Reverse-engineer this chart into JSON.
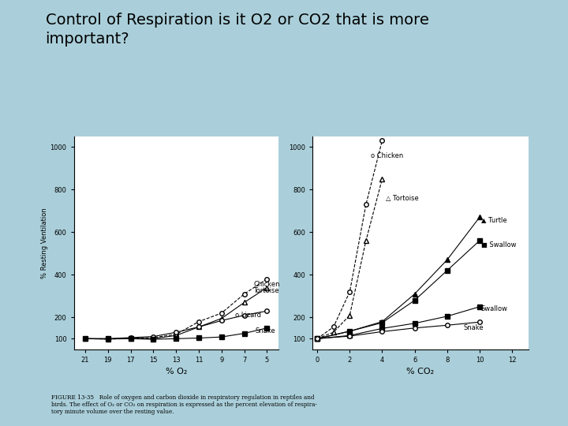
{
  "title": "Control of Respiration is it O2 or CO2 that is more\nimportant?",
  "title_fontsize": 14,
  "bg_color": "#aacfda",
  "panel_bg": "#ffffff",
  "ylabel": "% Resting Ventilation",
  "xlabel_left": "% O₂",
  "xlabel_right": "% CO₂",
  "o2_x_ticks": [
    21,
    19,
    17,
    15,
    13,
    11,
    9,
    7,
    5
  ],
  "co2_x_ticks": [
    0,
    2,
    4,
    6,
    8,
    10,
    12
  ],
  "o2_data": {
    "Chicken": {
      "x": [
        21,
        19,
        17,
        15,
        13,
        11,
        9,
        7,
        5
      ],
      "y": [
        100,
        98,
        100,
        105,
        120,
        180,
        220,
        310,
        380
      ],
      "marker": "o",
      "fillstyle": "none",
      "linestyle": "--",
      "label": "Chicken"
    },
    "Tortoise": {
      "x": [
        21,
        19,
        17,
        15,
        13,
        11,
        9,
        7,
        5
      ],
      "y": [
        100,
        98,
        102,
        100,
        115,
        155,
        195,
        270,
        340
      ],
      "marker": "^",
      "fillstyle": "none",
      "linestyle": "-",
      "label": "Tortoise"
    },
    "Lizard": {
      "x": [
        21,
        19,
        17,
        15,
        13,
        11,
        9,
        7,
        5
      ],
      "y": [
        100,
        100,
        105,
        110,
        130,
        155,
        185,
        210,
        230
      ],
      "marker": "o",
      "fillstyle": "none",
      "linestyle": "-",
      "label": "Lizard"
    },
    "Snake": {
      "x": [
        21,
        19,
        17,
        15,
        13,
        11,
        9,
        7,
        5
      ],
      "y": [
        100,
        100,
        100,
        97,
        100,
        103,
        108,
        125,
        150
      ],
      "marker": "s",
      "fillstyle": "full",
      "linestyle": "-",
      "label": "Snake"
    }
  },
  "co2_data": {
    "Chicken": {
      "x": [
        0,
        1,
        2,
        3,
        4
      ],
      "y": [
        100,
        155,
        320,
        730,
        1030
      ],
      "marker": "o",
      "fillstyle": "none",
      "linestyle": "--",
      "label": "Chicken"
    },
    "Tortoise": {
      "x": [
        0,
        1,
        2,
        3,
        4
      ],
      "y": [
        100,
        130,
        210,
        560,
        850
      ],
      "marker": "^",
      "fillstyle": "none",
      "linestyle": "--",
      "label": "Tortoise"
    },
    "Turtle": {
      "x": [
        0,
        2,
        4,
        6,
        8,
        10
      ],
      "y": [
        100,
        135,
        180,
        310,
        470,
        670
      ],
      "marker": "^",
      "fillstyle": "full",
      "linestyle": "-",
      "label": "Turtle"
    },
    "Swallow_bird": {
      "x": [
        0,
        2,
        4,
        6,
        8,
        10
      ],
      "y": [
        100,
        135,
        175,
        280,
        420,
        560
      ],
      "marker": "s",
      "fillstyle": "full",
      "linestyle": "-",
      "label": "Swallow"
    },
    "Swallow_reptile": {
      "x": [
        0,
        2,
        4,
        6,
        8,
        10
      ],
      "y": [
        100,
        115,
        148,
        172,
        205,
        250
      ],
      "marker": "s",
      "fillstyle": "full",
      "linestyle": "-",
      "label": "Swallow"
    },
    "Snake": {
      "x": [
        0,
        2,
        4,
        6,
        8,
        10
      ],
      "y": [
        100,
        112,
        133,
        150,
        163,
        178
      ],
      "marker": "o",
      "fillstyle": "none",
      "linestyle": "-",
      "label": "Snake"
    }
  },
  "figure_caption": "FIGURE 13-35   Role of oxygen and carbon dioxide in respiratory regulation in reptiles and\nbirds. The effect of O₂ or CO₂ on respiration is expressed as the percent elevation of respira-\ntory minute volume over the resting value.",
  "ylim": [
    50,
    1050
  ],
  "o2_xlim": [
    22,
    4
  ],
  "co2_xlim": [
    -0.3,
    13
  ]
}
